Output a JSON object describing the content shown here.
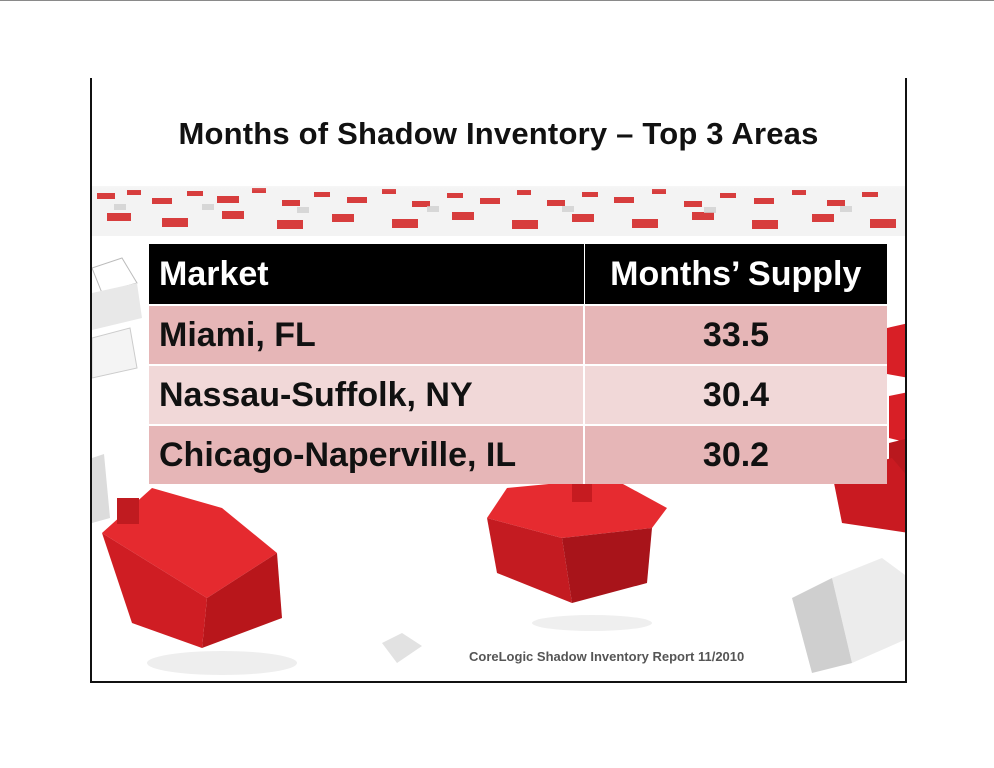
{
  "slide": {
    "title": "Months of Shadow Inventory – Top 3 Areas",
    "source": "CoreLogic Shadow Inventory Report 11/2010"
  },
  "table": {
    "headers": [
      "Market",
      "Months’ Supply"
    ],
    "rows": [
      {
        "market": "Miami, FL",
        "supply": "33.5"
      },
      {
        "market": "Nassau-Suffolk, NY",
        "supply": "30.4"
      },
      {
        "market": "Chicago-Naperville, IL",
        "supply": "30.2"
      }
    ]
  },
  "colors": {
    "header_bg": "#000000",
    "row_dark": "#e6b6b7",
    "row_light": "#f1d8d8",
    "house_red": "#d81f26"
  }
}
